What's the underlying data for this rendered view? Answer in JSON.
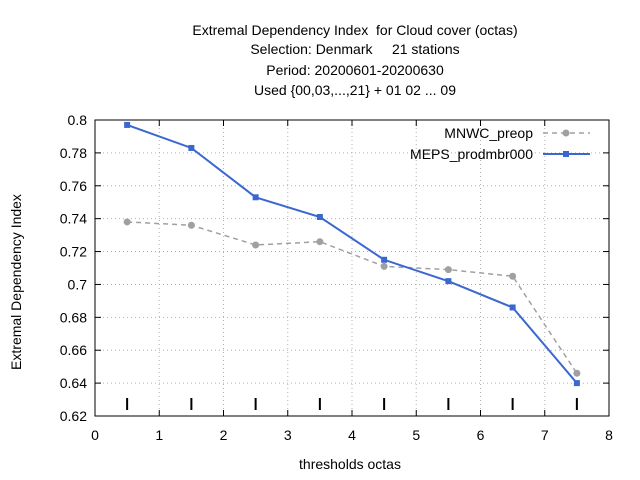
{
  "chart_data": {
    "type": "line",
    "title_lines": [
      "Extremal Dependency Index  for Cloud cover (octas)",
      "Selection: Denmark     21 stations",
      "Period: 20200601-20200630",
      "Used {00,03,...,21} + 01 02 ... 09"
    ],
    "xlabel": "thresholds octas",
    "ylabel": "Extremal Dependency Index",
    "xlim": [
      0,
      8
    ],
    "ylim": [
      0.62,
      0.8
    ],
    "x_ticks": [
      0,
      1,
      2,
      3,
      4,
      5,
      6,
      7,
      8
    ],
    "y_ticks": [
      0.62,
      0.64,
      0.66,
      0.68,
      0.7,
      0.72,
      0.74,
      0.76,
      0.78,
      0.8
    ],
    "grid": true,
    "legend_position": "top-right",
    "threshold_markers_x": [
      0.5,
      1.5,
      2.5,
      3.5,
      4.5,
      5.5,
      6.5,
      7.5
    ],
    "series": [
      {
        "name": "MNWC_preop",
        "color": "#a0a0a0",
        "line_style": "dashed",
        "marker": "circle",
        "x": [
          0.5,
          1.5,
          2.5,
          3.5,
          4.5,
          5.5,
          6.5,
          7.5
        ],
        "y": [
          0.738,
          0.736,
          0.724,
          0.726,
          0.711,
          0.709,
          0.705,
          0.646
        ]
      },
      {
        "name": "MEPS_prodmbr000",
        "color": "#3a68d0",
        "line_style": "solid",
        "marker": "square",
        "x": [
          0.5,
          1.5,
          2.5,
          3.5,
          4.5,
          5.5,
          6.5,
          7.5
        ],
        "y": [
          0.797,
          0.783,
          0.753,
          0.741,
          0.715,
          0.702,
          0.686,
          0.64
        ]
      }
    ]
  }
}
